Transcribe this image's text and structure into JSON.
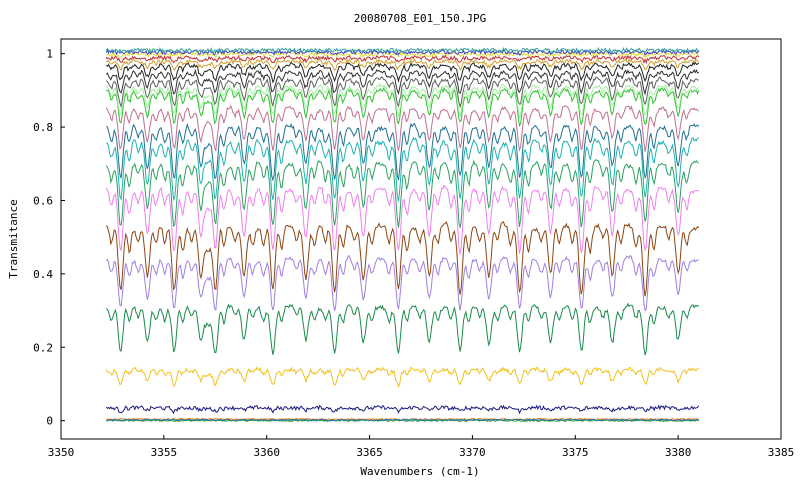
{
  "chart_data": {
    "type": "line",
    "title": "20080708_E01_150.JPG",
    "xlabel": "Wavenumbers (cm-1)",
    "ylabel": "Transmitance",
    "xlim": [
      3350,
      3385
    ],
    "ylim": [
      -0.05,
      1.04
    ],
    "x_ticks": [
      "3350",
      "3355",
      "3360",
      "3365",
      "3370",
      "3375",
      "3380",
      "3385"
    ],
    "y_ticks": [
      "0",
      "0.2",
      "0.4",
      "0.6",
      "0.8",
      "1"
    ],
    "x_range_data": [
      3352.2,
      3381.0
    ],
    "grid": false,
    "legend": "none",
    "absorption_line_centers": [
      3352.9,
      3354.2,
      3355.5,
      3356.8,
      3357.5,
      3358.9,
      3360.3,
      3361.9,
      3363.3,
      3364.7,
      3366.4,
      3367.9,
      3369.4,
      3370.8,
      3372.3,
      3373.8,
      3375.3,
      3376.8,
      3378.4,
      3380.0
    ],
    "series": [
      {
        "color": "#2ca02c",
        "baseline": 0.0,
        "depth": 0.0
      },
      {
        "color": "#ff7f0e",
        "baseline": 0.004,
        "depth": 0.0
      },
      {
        "color": "#1f77b4",
        "baseline": 0.002,
        "depth": 0.0
      },
      {
        "color": "#1a1a80",
        "baseline": 0.036,
        "depth": 0.015
      },
      {
        "color": "#f0c020",
        "baseline": 0.14,
        "depth": 0.06
      },
      {
        "color": "#1a8a4a",
        "baseline": 0.31,
        "depth": 0.18
      },
      {
        "color": "#a080e0",
        "baseline": 0.44,
        "depth": 0.2
      },
      {
        "color": "#8b4513",
        "baseline": 0.53,
        "depth": 0.26
      },
      {
        "color": "#f080f0",
        "baseline": 0.63,
        "depth": 0.24
      },
      {
        "color": "#2ca060",
        "baseline": 0.7,
        "depth": 0.24
      },
      {
        "color": "#20b0b0",
        "baseline": 0.76,
        "depth": 0.22
      },
      {
        "color": "#207090",
        "baseline": 0.8,
        "depth": 0.2
      },
      {
        "color": "#c07090",
        "baseline": 0.85,
        "depth": 0.16
      },
      {
        "color": "#30c030",
        "baseline": 0.9,
        "depth": 0.13
      },
      {
        "color": "#a0f0a0",
        "baseline": 0.91,
        "depth": 0.11
      },
      {
        "color": "#606060",
        "baseline": 0.93,
        "depth": 0.1
      },
      {
        "color": "#303030",
        "baseline": 0.95,
        "depth": 0.08
      },
      {
        "color": "#202020",
        "baseline": 0.97,
        "depth": 0.06
      },
      {
        "color": "#d0a030",
        "baseline": 0.98,
        "depth": 0.03
      },
      {
        "color": "#c03030",
        "baseline": 0.99,
        "depth": 0.015
      },
      {
        "color": "#e0e040",
        "baseline": 1.0,
        "depth": 0.008
      },
      {
        "color": "#4040c0",
        "baseline": 1.005,
        "depth": 0.005
      },
      {
        "color": "#30a0a0",
        "baseline": 1.01,
        "depth": 0.003
      }
    ]
  }
}
